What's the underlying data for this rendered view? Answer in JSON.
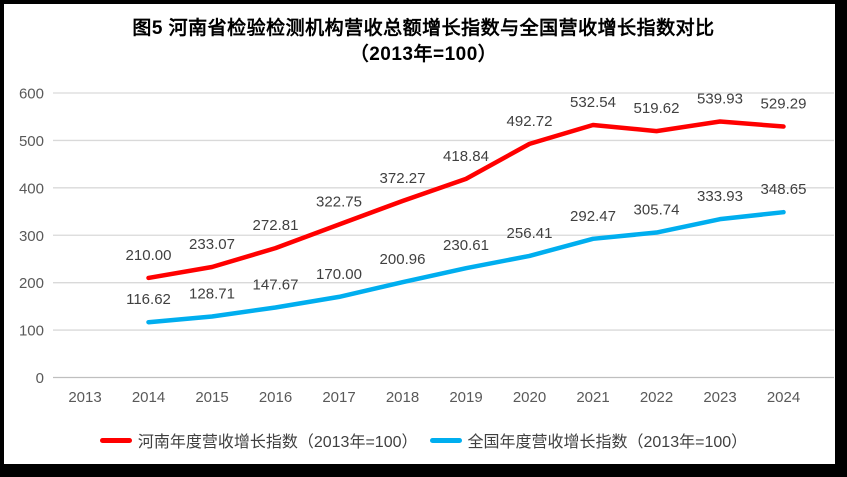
{
  "title": {
    "line1": "图5  河南省检验检测机构营收总额增长指数与全国营收增长指数对比",
    "line2": "（2013年=100）"
  },
  "chart_data": {
    "type": "line",
    "title": "图5 河南省检验检测机构营收总额增长指数与全国营收增长指数对比（2013年=100）",
    "xlabel": "",
    "ylabel": "",
    "categories": [
      "2013",
      "2014",
      "2015",
      "2016",
      "2017",
      "2018",
      "2019",
      "2020",
      "2021",
      "2022",
      "2023",
      "2024"
    ],
    "series": [
      {
        "name": "河南年度营收增长指数（2013年=100）",
        "color": "#FF0000",
        "values": [
          null,
          210.0,
          233.07,
          272.81,
          322.75,
          372.27,
          418.84,
          492.72,
          532.54,
          519.62,
          539.93,
          529.29
        ]
      },
      {
        "name": "全国年度营收增长指数（2013年=100）",
        "color": "#00AEEF",
        "values": [
          null,
          116.62,
          128.71,
          147.67,
          170.0,
          200.96,
          230.61,
          256.41,
          292.47,
          305.74,
          333.93,
          348.65
        ]
      }
    ],
    "ylim": [
      0,
      600
    ],
    "y_ticks": [
      0,
      100,
      200,
      300,
      400,
      500,
      600
    ],
    "grid": true,
    "legend_position": "bottom",
    "data_labels": true,
    "label_decimals": 2,
    "colors": {
      "gridline": "#D9D9D9",
      "axis_line": "#BFBFBF",
      "axis_text": "#595959",
      "data_label_text": "#404040",
      "frame_border": "#000000"
    }
  }
}
